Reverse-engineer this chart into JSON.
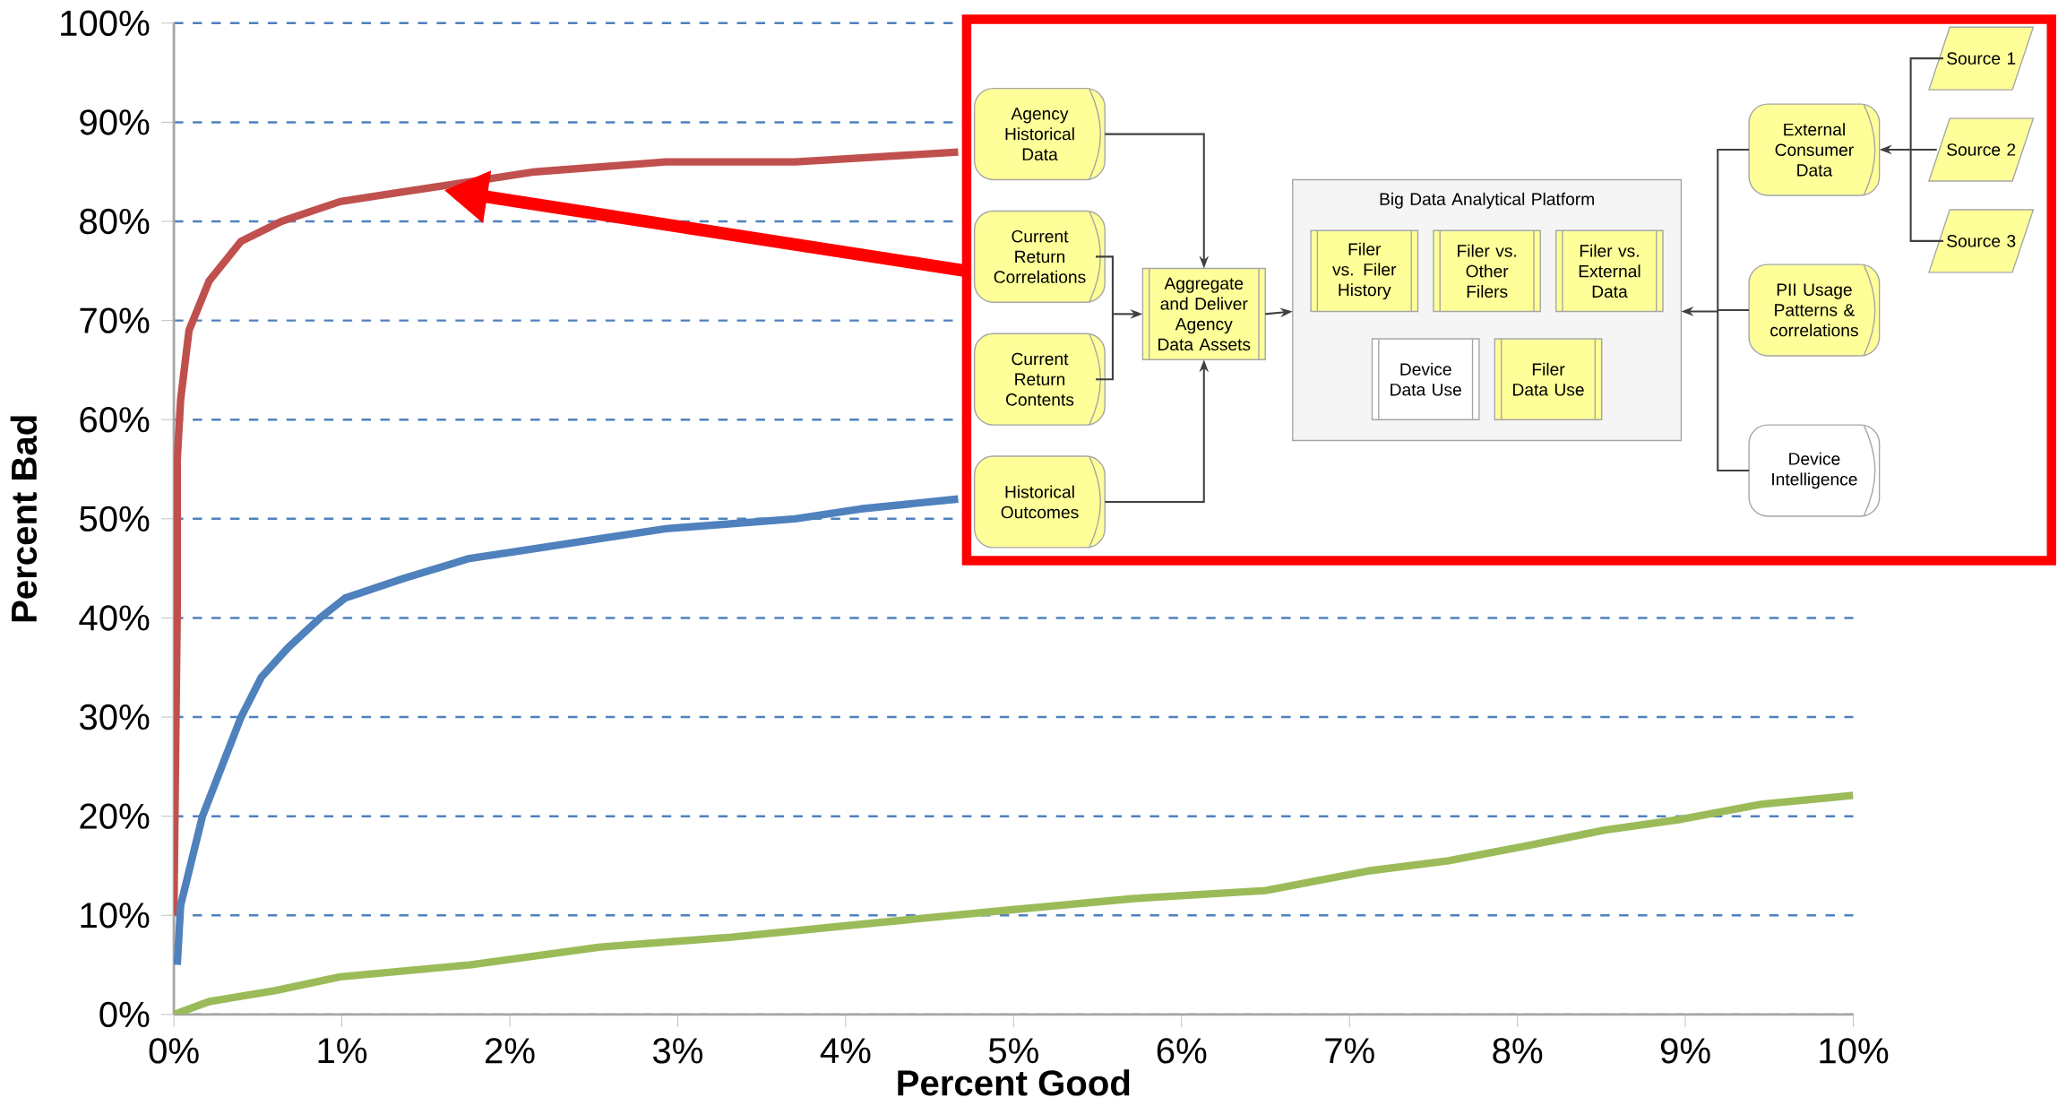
{
  "chart_data": [
    {
      "type": "line",
      "xlabel": "Percent Good",
      "ylabel": "Percent Bad",
      "xlim": [
        0,
        10
      ],
      "ylim": [
        0,
        100
      ],
      "xticks": [
        {
          "value": 0,
          "label": "0%"
        },
        {
          "value": 1,
          "label": "1%"
        },
        {
          "value": 2,
          "label": "2%"
        },
        {
          "value": 3,
          "label": "3%"
        },
        {
          "value": 4,
          "label": "4%"
        },
        {
          "value": 5,
          "label": "5%"
        },
        {
          "value": 6,
          "label": "6%"
        },
        {
          "value": 7,
          "label": "7%"
        },
        {
          "value": 8,
          "label": "8%"
        },
        {
          "value": 9,
          "label": "9%"
        },
        {
          "value": 10,
          "label": "10%"
        }
      ],
      "yticks": [
        {
          "value": 0,
          "label": "0%"
        },
        {
          "value": 10,
          "label": "10%"
        },
        {
          "value": 20,
          "label": "20%"
        },
        {
          "value": 30,
          "label": "30%"
        },
        {
          "value": 40,
          "label": "40%"
        },
        {
          "value": 50,
          "label": "50%"
        },
        {
          "value": 60,
          "label": "60%"
        },
        {
          "value": 70,
          "label": "70%"
        },
        {
          "value": 80,
          "label": "80%"
        },
        {
          "value": 90,
          "label": "90%"
        },
        {
          "value": 100,
          "label": "100%"
        }
      ],
      "grid": "y",
      "series": [
        {
          "color": "#c0504d",
          "x": [
            0,
            0.01,
            0.02,
            0.02,
            0.04,
            0.09,
            0.21,
            0.4,
            0.64,
            0.99,
            1.37,
            1.76,
            2.15,
            2.93,
            3.7,
            4.67
          ],
          "values": [
            10,
            26,
            41,
            56,
            62,
            69,
            74,
            78,
            80,
            82,
            83,
            84,
            85,
            86,
            86,
            87
          ]
        },
        {
          "color": "#4f81bd",
          "x": [
            0.02,
            0.04,
            0.17,
            0.4,
            0.52,
            0.68,
            0.87,
            1.02,
            1.37,
            1.76,
            2.15,
            2.54,
            2.93,
            3.7,
            4.09,
            4.67
          ],
          "values": [
            5,
            11,
            20,
            30,
            34,
            37,
            40,
            42,
            44,
            46,
            47,
            48,
            49,
            50,
            51,
            52
          ]
        },
        {
          "color": "#9bbb59",
          "x": [
            0,
            0.21,
            0.6,
            0.99,
            1.76,
            2.15,
            2.54,
            3.32,
            4.09,
            4.95,
            5.72,
            6.5,
            7.12,
            7.59,
            8.05,
            8.52,
            8.98,
            9.45,
            10
          ],
          "values": [
            0,
            1.3,
            2.4,
            3.8,
            5,
            5.9,
            6.8,
            7.8,
            9.1,
            10.5,
            11.7,
            12.5,
            14.5,
            15.5,
            17,
            18.6,
            19.7,
            21.2,
            22.1
          ]
        }
      ]
    },
    {
      "type": "other",
      "annotations": [
        "Agency Historical Data",
        "Current Return Correlations",
        "Current Return Contents",
        "Historical Outcomes",
        "Aggregate and Deliver Agency Data Assets",
        "Big Data Analytical Platform",
        "Filer vs. Filer History",
        "Filer vs. Other Filers",
        "Filer vs. External Data",
        "Device Data Use",
        "Filer Data Use",
        "External Consumer Data",
        "PII Usage Patterns & correlations",
        "Device Intelligence",
        "Source 1",
        "Source 2",
        "Source 3"
      ]
    }
  ]
}
